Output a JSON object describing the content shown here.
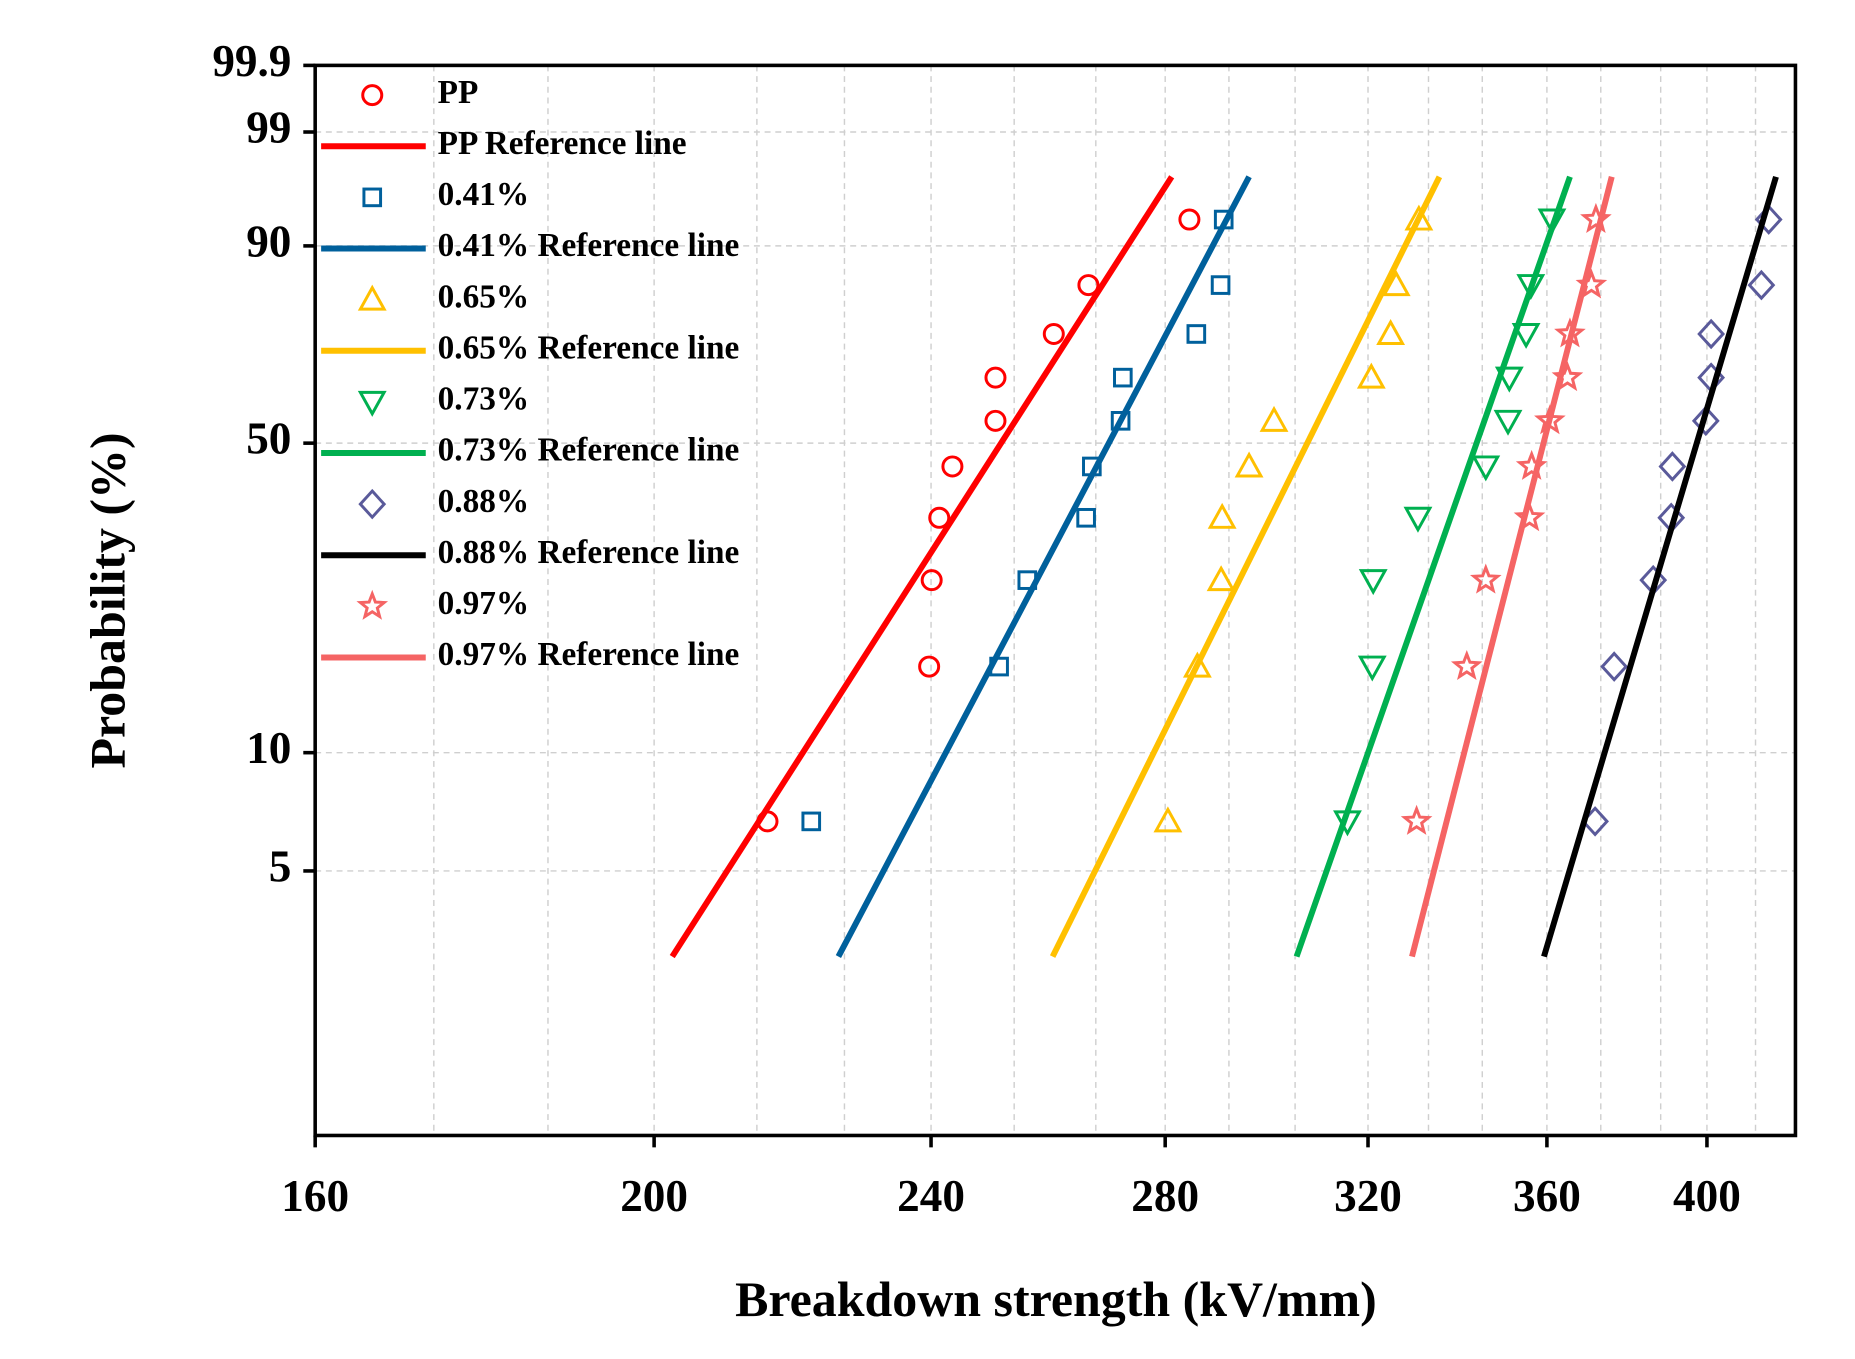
{
  "chart_data": {
    "type": "weibull",
    "xlabel": "Breakdown strength (kV/mm)",
    "ylabel": "Probability (%)",
    "xscale": "log",
    "yscale": "weibull",
    "xlim": [
      160,
      424
    ],
    "ylim": [
      1.02,
      99.9
    ],
    "xticks": [
      160,
      200,
      240,
      280,
      320,
      360,
      400
    ],
    "xgrid": [
      173,
      186.5,
      200,
      214,
      226.7,
      240,
      253.5,
      267.5,
      280,
      292,
      305,
      320,
      333,
      345,
      360,
      373,
      388,
      400,
      413
    ],
    "yticks": [
      5,
      10,
      50,
      90,
      99,
      99.9
    ],
    "grid": true,
    "legend": "upper left",
    "series": [
      {
        "name": "PP",
        "kind": "scatter",
        "marker": "circle",
        "color": "#ff0000",
        "x": [
          215.5,
          239.7,
          240.1,
          241.3,
          243.4,
          250.4,
          250.4,
          260.2,
          266.2,
          284.5
        ],
        "values": [
          6.7,
          16.3,
          26.0,
          35.6,
          45.2,
          54.8,
          64.4,
          74.0,
          83.7,
          93.3
        ]
      },
      {
        "name": "PP Reference line",
        "kind": "line",
        "color": "#ff0000",
        "x": [
          202.4,
          281.2
        ],
        "values": [
          3,
          97
        ]
      },
      {
        "name": "0.41%",
        "kind": "scatter",
        "marker": "square",
        "color": "#00609c",
        "x": [
          221.8,
          251,
          255.7,
          265.8,
          266.8,
          271.9,
          272.3,
          285.8,
          290.4,
          291.0
        ],
        "values": [
          6.7,
          16.3,
          26.0,
          35.6,
          45.2,
          54.8,
          64.4,
          74.0,
          83.7,
          93.3
        ]
      },
      {
        "name": "0.41% Reference line",
        "kind": "line",
        "color": "#00609c",
        "x": [
          225.8,
          295.9
        ],
        "values": [
          3,
          97
        ]
      },
      {
        "name": "0.65%",
        "kind": "scatter",
        "marker": "triangle-up",
        "color": "#ffc000",
        "x": [
          280.5,
          286,
          290.5,
          290.7,
          295.9,
          300.8,
          320.7,
          324.8,
          326.0,
          330.9
        ],
        "values": [
          6.7,
          16.3,
          26.0,
          35.6,
          45.2,
          54.8,
          64.4,
          74.0,
          83.7,
          93.3
        ]
      },
      {
        "name": "0.65% Reference line",
        "kind": "line",
        "color": "#ffc000",
        "x": [
          260,
          335.4
        ],
        "values": [
          3,
          97
        ]
      },
      {
        "name": "0.73%",
        "kind": "scatter",
        "marker": "triangle-down",
        "color": "#00b050",
        "x": [
          315.7,
          320.9,
          321.1,
          330.7,
          345.8,
          350.9,
          351.2,
          355.1,
          356.2,
          361.2
        ],
        "values": [
          6.7,
          16.3,
          26.0,
          35.6,
          45.2,
          54.8,
          64.4,
          74.0,
          83.7,
          93.3
        ]
      },
      {
        "name": "0.73% Reference line",
        "kind": "line",
        "color": "#00b050",
        "x": [
          305.3,
          365.5
        ],
        "values": [
          3,
          97
        ]
      },
      {
        "name": "0.88%",
        "kind": "scatter",
        "marker": "diamond",
        "color": "#5a5a9a",
        "x": [
          371.6,
          376.3,
          386.1,
          390.7,
          391.0,
          399.7,
          401.1,
          401.1,
          414.6,
          416.6
        ],
        "values": [
          6.7,
          16.3,
          26.0,
          35.6,
          45.2,
          54.8,
          64.4,
          74.0,
          83.7,
          93.3
        ]
      },
      {
        "name": "0.88% Reference line",
        "kind": "line",
        "color": "#000000",
        "x": [
          359.3,
          418.6
        ],
        "values": [
          3,
          97
        ]
      },
      {
        "name": "0.97%",
        "kind": "scatter",
        "marker": "star",
        "color": "#f56464",
        "x": [
          330.4,
          341.5,
          345.8,
          355.9,
          356.4,
          360.7,
          364.9,
          365.5,
          370.7,
          371.8
        ],
        "values": [
          6.7,
          16.3,
          26.0,
          35.6,
          45.2,
          54.8,
          64.4,
          74.0,
          83.7,
          93.3
        ]
      },
      {
        "name": "0.97% Reference line",
        "kind": "line",
        "color": "#f56464",
        "x": [
          329.4,
          375.7
        ],
        "values": [
          3,
          97
        ]
      }
    ]
  }
}
